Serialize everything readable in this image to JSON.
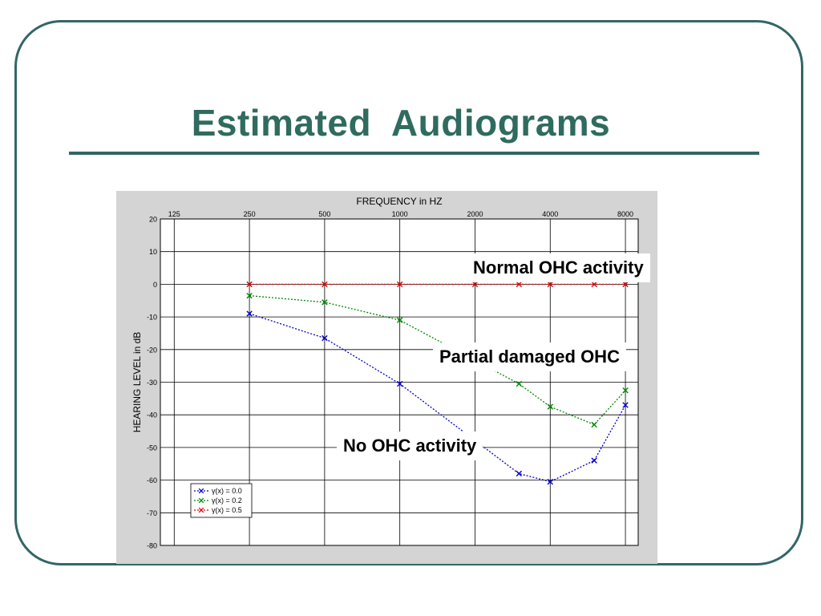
{
  "slide": {
    "title": "Estimated  Audiograms"
  },
  "callouts": {
    "normal": "Normal OHC activity",
    "partial": "Partial damaged OHC",
    "none": "No OHC activity"
  },
  "colors": {
    "frame": "#336666",
    "title": "#2f6b5e",
    "chart_bg": "#d4d4d4",
    "series_0": "#0000cc",
    "series_1": "#008800",
    "series_2": "#dd0000"
  },
  "chart_data": {
    "type": "line",
    "title": "FREQUENCY in HZ",
    "xlabel": "FREQUENCY in HZ",
    "ylabel": "HEARING LEVEL in dB",
    "x_scale": "log2",
    "x_tick_labels": [
      "125",
      "250",
      "500",
      "1000",
      "2000",
      "4000",
      "8000"
    ],
    "x_ticks": [
      125,
      250,
      500,
      1000,
      2000,
      4000,
      8000
    ],
    "xlim": [
      110,
      9000
    ],
    "y_ticks": [
      20,
      10,
      0,
      -10,
      -20,
      -30,
      -40,
      -50,
      -60,
      -70,
      -80
    ],
    "ylim": [
      -80,
      20
    ],
    "grid": true,
    "legend_position": "bottom-left",
    "series": [
      {
        "name": "γ(x) = 0.0",
        "color": "#0000cc",
        "x": [
          250,
          500,
          1000,
          3000,
          4000,
          6000,
          8000
        ],
        "y": [
          -9,
          -16.5,
          -30.5,
          -58,
          -60.5,
          -54,
          -37
        ]
      },
      {
        "name": "γ(x) = 0.2",
        "color": "#008800",
        "x": [
          250,
          500,
          1000,
          3000,
          4000,
          6000,
          8000
        ],
        "y": [
          -3.5,
          -5.5,
          -11,
          -30.5,
          -37.5,
          -43,
          -32.5
        ]
      },
      {
        "name": "γ(x) = 0.5",
        "color": "#dd0000",
        "x": [
          250,
          500,
          1000,
          2000,
          3000,
          4000,
          6000,
          8000
        ],
        "y": [
          0,
          0,
          0,
          0,
          0,
          0,
          0,
          0
        ]
      }
    ]
  }
}
